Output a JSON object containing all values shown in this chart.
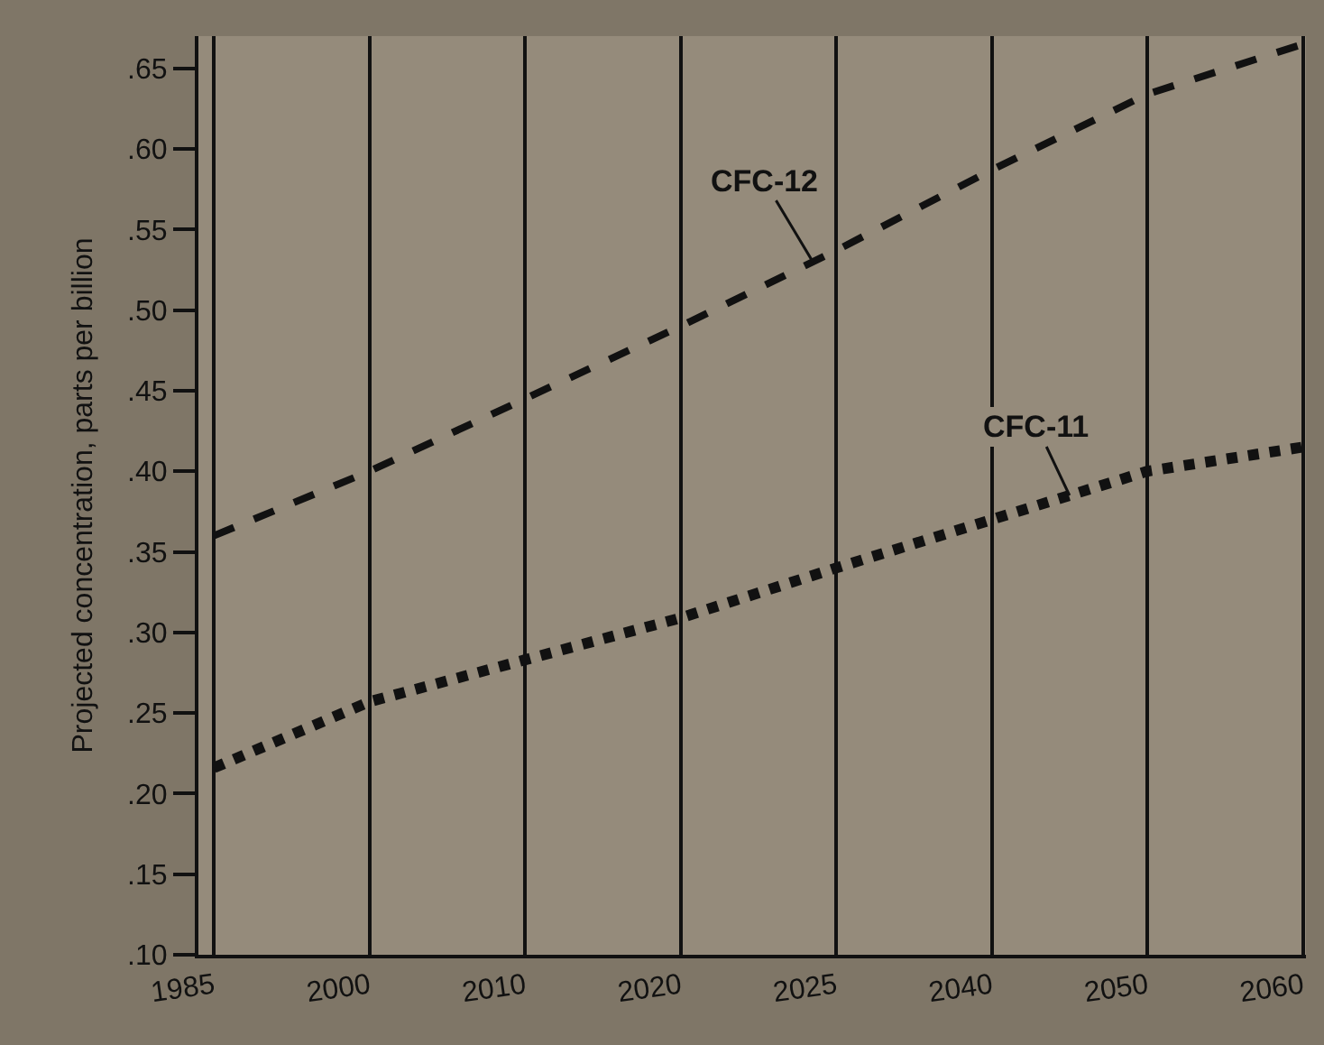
{
  "chart_data": {
    "type": "line",
    "ylabel": "Projected concentration, parts per billion",
    "categories": [
      "1985",
      "2000",
      "2010",
      "2020",
      "2025",
      "2040",
      "2050",
      "2060"
    ],
    "series": [
      {
        "name": "CFC-12",
        "color": "#111111",
        "line_style": "dashed",
        "values": [
          0.36,
          0.4,
          0.445,
          0.49,
          0.537,
          0.587,
          0.634,
          0.665
        ]
      },
      {
        "name": "CFC-11",
        "color": "#111111",
        "line_style": "dotted",
        "values": [
          0.216,
          0.257,
          0.283,
          0.309,
          0.34,
          0.37,
          0.4,
          0.415
        ]
      }
    ],
    "ylim": [
      0.1,
      0.67
    ],
    "yticks": [
      {
        "value": 0.1,
        "label": ".10"
      },
      {
        "value": 0.15,
        "label": ".15"
      },
      {
        "value": 0.2,
        "label": ".20"
      },
      {
        "value": 0.25,
        "label": ".25"
      },
      {
        "value": 0.3,
        "label": ".30"
      },
      {
        "value": 0.35,
        "label": ".35"
      },
      {
        "value": 0.4,
        "label": ".40"
      },
      {
        "value": 0.45,
        "label": ".45"
      },
      {
        "value": 0.5,
        "label": ".50"
      },
      {
        "value": 0.55,
        "label": ".55"
      },
      {
        "value": 0.6,
        "label": ".60"
      },
      {
        "value": 0.65,
        "label": ".65"
      }
    ],
    "grid": "x",
    "legend": false,
    "marker": "none"
  }
}
